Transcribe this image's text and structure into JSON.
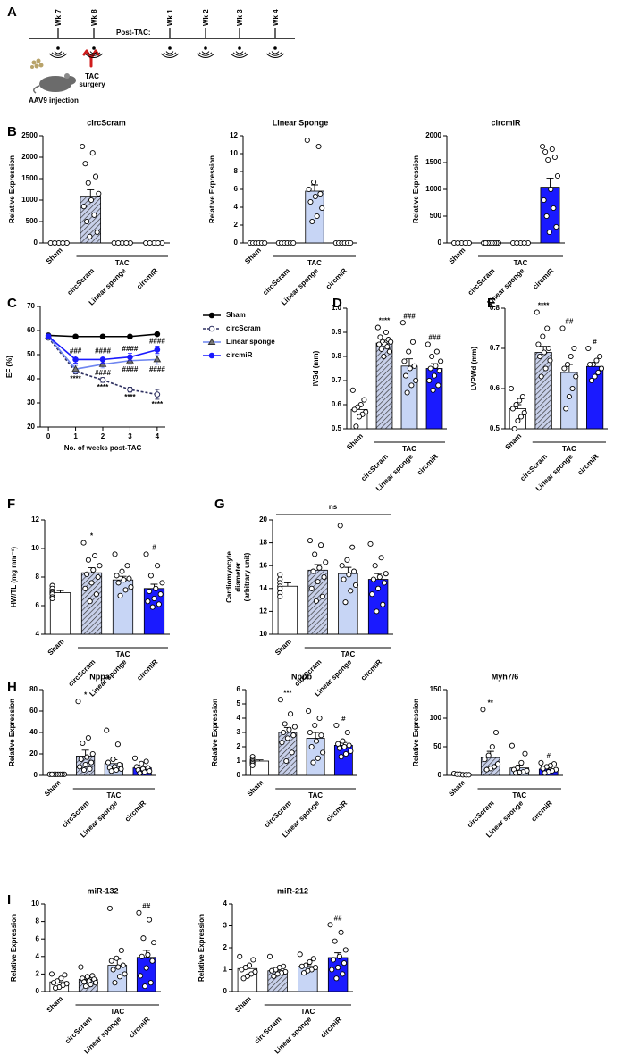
{
  "timeline": {
    "panel": "A",
    "ticks": [
      "Wk 7",
      "Wk 8",
      "Wk 1",
      "Wk 2",
      "Wk 3",
      "Wk 4"
    ],
    "post_label": "Post-TAC:",
    "injection_label": "AAV9 injection",
    "surgery_label": [
      "TAC",
      "surgery"
    ]
  },
  "chart_data": [
    {
      "type": "bar",
      "panel": "B",
      "title": "circScram",
      "ylabel": "Relative Expression",
      "categories": [
        "Sham",
        "circScram",
        "Linear sponge",
        "circmiR"
      ],
      "values": [
        0,
        1090,
        0,
        0
      ],
      "errors": [
        0,
        150,
        0,
        0
      ],
      "points": [
        [
          0,
          0,
          0,
          0,
          0
        ],
        [
          2250,
          2100,
          1850,
          1550,
          1400,
          1150,
          1000,
          850,
          650,
          500,
          250,
          150
        ],
        [
          0,
          0,
          0,
          0,
          0
        ],
        [
          0,
          0,
          0,
          0,
          0
        ]
      ],
      "colors": [
        "#ffffff",
        "#c8d0ea",
        "#c7d5f5",
        "#1a1aff"
      ],
      "hatched": [
        false,
        true,
        false,
        false
      ],
      "group_label": "TAC",
      "ylim": [
        0,
        2500
      ],
      "yticks": [
        0,
        500,
        1000,
        1500,
        2000,
        2500
      ]
    },
    {
      "type": "bar",
      "title": "Linear Sponge",
      "ylabel": "Relative Expression",
      "categories": [
        "Sham",
        "circScram",
        "Linear sponge",
        "circmiR"
      ],
      "values": [
        0,
        0,
        5.8,
        0
      ],
      "errors": [
        0,
        0,
        0.7,
        0
      ],
      "points": [
        [
          0,
          0,
          0,
          0,
          0,
          0
        ],
        [
          0,
          0,
          0,
          0,
          0,
          0
        ],
        [
          11.5,
          10.8,
          6.8,
          6,
          5.5,
          5.2,
          4.6,
          3.9,
          3,
          2.4
        ],
        [
          0,
          0,
          0,
          0,
          0,
          0
        ]
      ],
      "colors": [
        "#ffffff",
        "#c8d0ea",
        "#c7d5f5",
        "#1a1aff"
      ],
      "hatched": [
        false,
        true,
        false,
        false
      ],
      "group_label": "TAC",
      "ylim": [
        0,
        12
      ],
      "yticks": [
        0,
        2,
        4,
        6,
        8,
        10,
        12
      ]
    },
    {
      "type": "bar",
      "title": "circmiR",
      "ylabel": "Relative Expression",
      "categories": [
        "Sham",
        "circScram",
        "Linear sponge",
        "circmiR"
      ],
      "values": [
        0,
        0,
        0,
        1040
      ],
      "errors": [
        0,
        0,
        0,
        170
      ],
      "points": [
        [
          0,
          0,
          0,
          0,
          0
        ],
        [
          0,
          0,
          0,
          0,
          0,
          0,
          0,
          0
        ],
        [
          0,
          0,
          0,
          0,
          0
        ],
        [
          1800,
          1750,
          1700,
          1600,
          1550,
          1250,
          1000,
          800,
          650,
          500,
          300,
          200
        ]
      ],
      "colors": [
        "#ffffff",
        "#c8d0ea",
        "#c7d5f5",
        "#1a1aff"
      ],
      "hatched": [
        false,
        true,
        false,
        false
      ],
      "group_label": "TAC",
      "ylim": [
        0,
        2000
      ],
      "yticks": [
        0,
        500,
        1000,
        1500,
        2000
      ]
    },
    {
      "type": "line",
      "panel": "C",
      "ylabel": "EF (%)",
      "xlabel": "No. of weeks post-TAC",
      "x": [
        0,
        1,
        2,
        3,
        4
      ],
      "xlim": [
        -0.3,
        4.3
      ],
      "xticks": [
        0,
        1,
        2,
        3,
        4
      ],
      "ylim": [
        20,
        70
      ],
      "yticks": [
        20,
        30,
        40,
        50,
        60,
        70
      ],
      "legend": "right",
      "series": [
        {
          "name": "Sham",
          "color": "#000000",
          "marker": "circle",
          "dashed": false,
          "values": [
            58,
            57.5,
            57.5,
            57.5,
            58.5
          ],
          "errors": [
            0.6,
            0.5,
            0.5,
            0.5,
            0.5
          ]
        },
        {
          "name": "circScram",
          "color": "#2e3060",
          "marker": "open-circle",
          "dashed": true,
          "values": [
            57,
            43,
            39.5,
            35.5,
            33.5
          ],
          "errors": [
            0.8,
            1,
            1,
            1,
            2
          ],
          "annotations": [
            null,
            "****",
            "****",
            "****",
            "****"
          ],
          "annotation_side": "below"
        },
        {
          "name": "Linear sponge",
          "color": "#6f86f0",
          "marker": "triangle",
          "dashed": false,
          "values": [
            57.5,
            44,
            46,
            47.5,
            48
          ],
          "errors": [
            1,
            1.5,
            1.5,
            1.5,
            2
          ],
          "annotations": [
            null,
            null,
            "####",
            "####",
            "####"
          ],
          "annotation_side": "below"
        },
        {
          "name": "circmiR",
          "color": "#1a1aff",
          "marker": "circle",
          "dashed": false,
          "values": [
            57.5,
            48,
            48,
            49,
            52
          ],
          "errors": [
            1,
            1.5,
            1.5,
            1.5,
            1.5
          ],
          "annotations": [
            null,
            "###",
            "####",
            "####",
            "####"
          ],
          "annotation_side": "above"
        }
      ]
    },
    {
      "type": "bar",
      "panel": "D",
      "ylabel": "IVSd (mm)",
      "categories": [
        "Sham",
        "circScram",
        "Linear sponge",
        "circmiR"
      ],
      "values": [
        0.58,
        0.855,
        0.76,
        0.75
      ],
      "errors": [
        0.015,
        0.012,
        0.03,
        0.02
      ],
      "points": [
        [
          0.66,
          0.62,
          0.6,
          0.59,
          0.58,
          0.57,
          0.56,
          0.55,
          0.51
        ],
        [
          0.92,
          0.9,
          0.88,
          0.87,
          0.86,
          0.86,
          0.85,
          0.85,
          0.84,
          0.83,
          0.82,
          0.8
        ],
        [
          0.94,
          0.86,
          0.82,
          0.78,
          0.76,
          0.75,
          0.72,
          0.7,
          0.68,
          0.65
        ],
        [
          0.85,
          0.82,
          0.8,
          0.78,
          0.76,
          0.75,
          0.74,
          0.72,
          0.7,
          0.68,
          0.66
        ]
      ],
      "annotations": [
        null,
        "****",
        "###",
        "###"
      ],
      "colors": [
        "#ffffff",
        "#c8d0ea",
        "#c7d5f5",
        "#1a1aff"
      ],
      "hatched": [
        false,
        true,
        false,
        false
      ],
      "group_label": "TAC",
      "ylim": [
        0.5,
        1
      ],
      "yticks": [
        0.5,
        0.6,
        0.7,
        0.8,
        0.9,
        {
          "value": 1,
          "label": "1.0"
        }
      ]
    },
    {
      "type": "bar",
      "panel": "E",
      "ylabel": "LVPWd (mm)",
      "categories": [
        "Sham",
        "circScram",
        "Linear sponge",
        "circmiR"
      ],
      "values": [
        0.55,
        0.69,
        0.64,
        0.655
      ],
      "errors": [
        0.01,
        0.015,
        0.02,
        0.01
      ],
      "points": [
        [
          0.6,
          0.58,
          0.57,
          0.56,
          0.55,
          0.54,
          0.53,
          0.52,
          0.5
        ],
        [
          0.79,
          0.75,
          0.73,
          0.71,
          0.7,
          0.69,
          0.68,
          0.67,
          0.65,
          0.63
        ],
        [
          0.75,
          0.7,
          0.68,
          0.66,
          0.65,
          0.63,
          0.6,
          0.58,
          0.55
        ],
        [
          0.7,
          0.68,
          0.67,
          0.66,
          0.66,
          0.65,
          0.64,
          0.63,
          0.62
        ]
      ],
      "annotations": [
        null,
        "****",
        "##",
        "#"
      ],
      "colors": [
        "#ffffff",
        "#c8d0ea",
        "#c7d5f5",
        "#1a1aff"
      ],
      "hatched": [
        false,
        true,
        false,
        false
      ],
      "group_label": "TAC",
      "ylim": [
        0.5,
        0.8
      ],
      "yticks": [
        0.5,
        0.6,
        0.7,
        0.8
      ]
    },
    {
      "type": "bar",
      "panel": "F",
      "ylabel": "HW/TL (mg mm⁻¹)",
      "categories": [
        "Sham",
        "circScram",
        "Linear sponge",
        "circmiR"
      ],
      "values": [
        6.9,
        8.3,
        7.8,
        7.2
      ],
      "errors": [
        0.15,
        0.35,
        0.25,
        0.3
      ],
      "points": [
        [
          7.4,
          7.2,
          7,
          6.9,
          6.8,
          6.6,
          6.5
        ],
        [
          10.4,
          9.5,
          9.2,
          8.8,
          8.5,
          8.2,
          8,
          7.6,
          7.2,
          6.8,
          6.3
        ],
        [
          9.6,
          8.8,
          8.4,
          8.1,
          7.9,
          7.8,
          7.6,
          7.3,
          7.1,
          6.7
        ],
        [
          9.6,
          8.8,
          8.1,
          7.6,
          7.2,
          7,
          6.8,
          6.5,
          6.3,
          6.1,
          5.9
        ]
      ],
      "annotations": [
        null,
        "*",
        null,
        "#"
      ],
      "colors": [
        "#ffffff",
        "#c8d0ea",
        "#c7d5f5",
        "#1a1aff"
      ],
      "hatched": [
        false,
        true,
        false,
        false
      ],
      "group_label": "TAC",
      "ylim": [
        4,
        12
      ],
      "yticks": [
        4,
        6,
        8,
        10,
        12
      ]
    },
    {
      "type": "bar",
      "panel": "G",
      "ylabel": [
        "Cardiomyocyte",
        "diameter",
        "(arbitrary unit)"
      ],
      "categories": [
        "Sham",
        "circScram",
        "Linear sponge",
        "circmiR"
      ],
      "values": [
        14.2,
        15.6,
        15.3,
        14.8
      ],
      "errors": [
        0.3,
        0.5,
        0.55,
        0.5
      ],
      "points": [
        [
          15.2,
          14.8,
          14.5,
          14.2,
          14,
          13.6,
          13.3
        ],
        [
          18.2,
          17.8,
          17,
          16.3,
          15.8,
          15.5,
          15,
          14.6,
          14,
          13.3,
          12.9
        ],
        [
          19.5,
          17.6,
          16.5,
          16,
          15.5,
          15.2,
          14.8,
          14.3,
          13.8,
          12.8
        ],
        [
          17.9,
          16.7,
          16,
          15.3,
          15,
          14.8,
          14.5,
          14,
          13.5,
          12.6,
          12
        ]
      ],
      "colors": [
        "#ffffff",
        "#c8d0ea",
        "#c7d5f5",
        "#1a1aff"
      ],
      "hatched": [
        false,
        true,
        false,
        false
      ],
      "group_label": "TAC",
      "bracket_label": "ns",
      "ylim": [
        10,
        20
      ],
      "yticks": [
        10,
        12,
        14,
        16,
        18,
        20
      ]
    },
    {
      "type": "bar",
      "panel": "H",
      "title": "Nppa",
      "ylabel": "Relative Expression",
      "categories": [
        "Sham",
        "circScram",
        "Linear sponge",
        "circmiR"
      ],
      "values": [
        1,
        18,
        11,
        7
      ],
      "errors": [
        0.1,
        5.5,
        3.5,
        1.5
      ],
      "points": [
        [
          1,
          1,
          1,
          1,
          1,
          1,
          1,
          1
        ],
        [
          69,
          35,
          30,
          20,
          17,
          15,
          12,
          10,
          8,
          6,
          5
        ],
        [
          42,
          29,
          15,
          12,
          10,
          8,
          7,
          6,
          5,
          4
        ],
        [
          16,
          13,
          11,
          8,
          7,
          6,
          5,
          4,
          3,
          2
        ]
      ],
      "annotations": [
        null,
        "*",
        null,
        null
      ],
      "colors": [
        "#ffffff",
        "#c8d0ea",
        "#c7d5f5",
        "#1a1aff"
      ],
      "hatched": [
        false,
        true,
        false,
        false
      ],
      "group_label": "TAC",
      "ylim": [
        0,
        80
      ],
      "yticks": [
        0,
        20,
        40,
        60,
        80
      ]
    },
    {
      "type": "bar",
      "title": "Nppb",
      "ylabel": "Relative Expression",
      "categories": [
        "Sham",
        "circScram",
        "Linear sponge",
        "circmiR"
      ],
      "values": [
        1,
        3,
        2.6,
        2.1
      ],
      "errors": [
        0.08,
        0.35,
        0.4,
        0.2
      ],
      "points": [
        [
          1.3,
          1.1,
          1,
          0.9,
          0.9,
          0.8,
          0.7
        ],
        [
          5.3,
          4.3,
          3.6,
          3.4,
          3.2,
          3,
          2.8,
          2.6,
          2.3,
          1.6,
          1
        ],
        [
          4.5,
          4,
          3.5,
          3,
          2.8,
          2.4,
          2,
          1.6,
          1.2,
          0.9
        ],
        [
          3.5,
          3,
          2.4,
          2.2,
          2.1,
          2,
          1.9,
          1.7,
          1.5,
          1.3
        ]
      ],
      "annotations": [
        null,
        "***",
        null,
        "#"
      ],
      "colors": [
        "#ffffff",
        "#c8d0ea",
        "#c7d5f5",
        "#1a1aff"
      ],
      "hatched": [
        false,
        true,
        false,
        false
      ],
      "group_label": "TAC",
      "ylim": [
        0,
        6
      ],
      "yticks": [
        0,
        1,
        2,
        3,
        4,
        5,
        6
      ]
    },
    {
      "type": "bar",
      "title": "Myh7/6",
      "ylabel": "Relative Expression",
      "categories": [
        "Sham",
        "circScram",
        "Linear sponge",
        "circmiR"
      ],
      "values": [
        1.5,
        31,
        13,
        11
      ],
      "errors": [
        0.3,
        11,
        5,
        2.5
      ],
      "points": [
        [
          3,
          2,
          2,
          1,
          1,
          1
        ],
        [
          115,
          75,
          50,
          35,
          28,
          20,
          15,
          12,
          10
        ],
        [
          52,
          38,
          22,
          13,
          10,
          8,
          6,
          5,
          4
        ],
        [
          22,
          20,
          17,
          15,
          12,
          10,
          8,
          6,
          4
        ]
      ],
      "annotations": [
        null,
        "**",
        null,
        "#"
      ],
      "colors": [
        "#ffffff",
        "#c8d0ea",
        "#c7d5f5",
        "#1a1aff"
      ],
      "hatched": [
        false,
        true,
        false,
        false
      ],
      "group_label": "TAC",
      "ylim": [
        0,
        150
      ],
      "yticks": [
        0,
        50,
        100,
        150
      ]
    },
    {
      "type": "bar",
      "panel": "I",
      "title": "miR-132",
      "ylabel": "Relative Expression",
      "categories": [
        "Sham",
        "circScram",
        "Linear sponge",
        "circmiR"
      ],
      "values": [
        1.1,
        1.4,
        3,
        3.9
      ],
      "errors": [
        0.2,
        0.2,
        0.7,
        0.8
      ],
      "points": [
        [
          2,
          1.9,
          1.5,
          1.2,
          1,
          0.9,
          0.7,
          0.5,
          0.4
        ],
        [
          2.8,
          1.8,
          1.7,
          1.5,
          1.4,
          1.2,
          1.1,
          1,
          0.8,
          0.6
        ],
        [
          9.5,
          4.7,
          3.8,
          3.5,
          3,
          2.8,
          2.5,
          2,
          1.7,
          1
        ],
        [
          9,
          8.2,
          6.1,
          5.6,
          4.2,
          4,
          3.5,
          2.7,
          1.8,
          1,
          0.6
        ]
      ],
      "annotations": [
        null,
        null,
        null,
        "##"
      ],
      "colors": [
        "#ffffff",
        "#c8d0ea",
        "#c7d5f5",
        "#1a1aff"
      ],
      "hatched": [
        false,
        true,
        false,
        false
      ],
      "group_label": "TAC",
      "ylim": [
        0,
        10
      ],
      "yticks": [
        0,
        2,
        4,
        6,
        8,
        10
      ]
    },
    {
      "type": "bar",
      "title": "miR-212",
      "ylabel": "Relative Expression",
      "categories": [
        "Sham",
        "circScram",
        "Linear sponge",
        "circmiR"
      ],
      "values": [
        1.05,
        0.95,
        1.15,
        1.55
      ],
      "errors": [
        0.12,
        0.08,
        0.08,
        0.22
      ],
      "points": [
        [
          1.6,
          1.45,
          1.2,
          1.1,
          1,
          0.9,
          0.8,
          0.7,
          0.6
        ],
        [
          1.6,
          1.15,
          1.1,
          1,
          0.95,
          0.9,
          0.85,
          0.8,
          0.7
        ],
        [
          1.7,
          1.5,
          1.35,
          1.2,
          1.15,
          1.1,
          1,
          0.95,
          0.85
        ],
        [
          3.05,
          2.7,
          2.3,
          1.9,
          1.6,
          1.45,
          1.3,
          1.1,
          1,
          0.8,
          0.6
        ]
      ],
      "annotations": [
        null,
        null,
        null,
        "##"
      ],
      "colors": [
        "#ffffff",
        "#c8d0ea",
        "#c7d5f5",
        "#1a1aff"
      ],
      "hatched": [
        false,
        true,
        false,
        false
      ],
      "group_label": "TAC",
      "ylim": [
        0,
        4
      ],
      "yticks": [
        0,
        1,
        2,
        3,
        4
      ]
    }
  ]
}
